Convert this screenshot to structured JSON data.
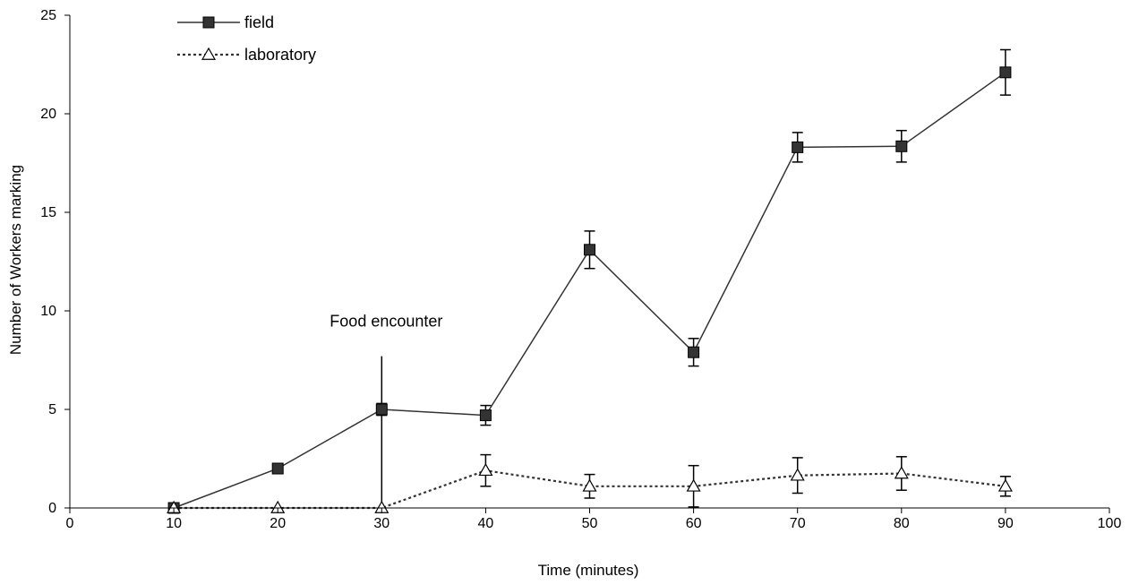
{
  "chart_data": {
    "type": "line",
    "title": "",
    "xlabel": "Time (minutes)",
    "ylabel": "Number of Workers marking",
    "xlim": [
      0,
      100
    ],
    "ylim": [
      0,
      25
    ],
    "xticks": [
      0,
      10,
      20,
      30,
      40,
      50,
      60,
      70,
      80,
      90,
      100
    ],
    "yticks": [
      0,
      5,
      10,
      15,
      20,
      25
    ],
    "grid": false,
    "legend_position": "top-left",
    "series": [
      {
        "name": "field",
        "line_style": "solid",
        "marker": "filled-square",
        "color": "#333333",
        "x": [
          10,
          20,
          30,
          40,
          50,
          60,
          70,
          80,
          90
        ],
        "y": [
          0,
          2,
          5,
          4.7,
          13.1,
          7.9,
          18.3,
          18.35,
          22.1
        ],
        "error": [
          0,
          0,
          0.3,
          0.5,
          0.95,
          0.7,
          0.75,
          0.8,
          1.15
        ]
      },
      {
        "name": "laboratory",
        "line_style": "dotted",
        "marker": "open-triangle",
        "color": "#333333",
        "x": [
          10,
          20,
          30,
          40,
          50,
          60,
          70,
          80,
          90
        ],
        "y": [
          0,
          0,
          0,
          1.9,
          1.1,
          1.1,
          1.65,
          1.75,
          1.1
        ],
        "error": [
          0,
          0,
          0,
          0.8,
          0.6,
          1.05,
          0.9,
          0.85,
          0.5
        ]
      }
    ],
    "annotations": [
      {
        "text": "Food encounter",
        "x": 30,
        "y_top": 7.7
      }
    ]
  }
}
